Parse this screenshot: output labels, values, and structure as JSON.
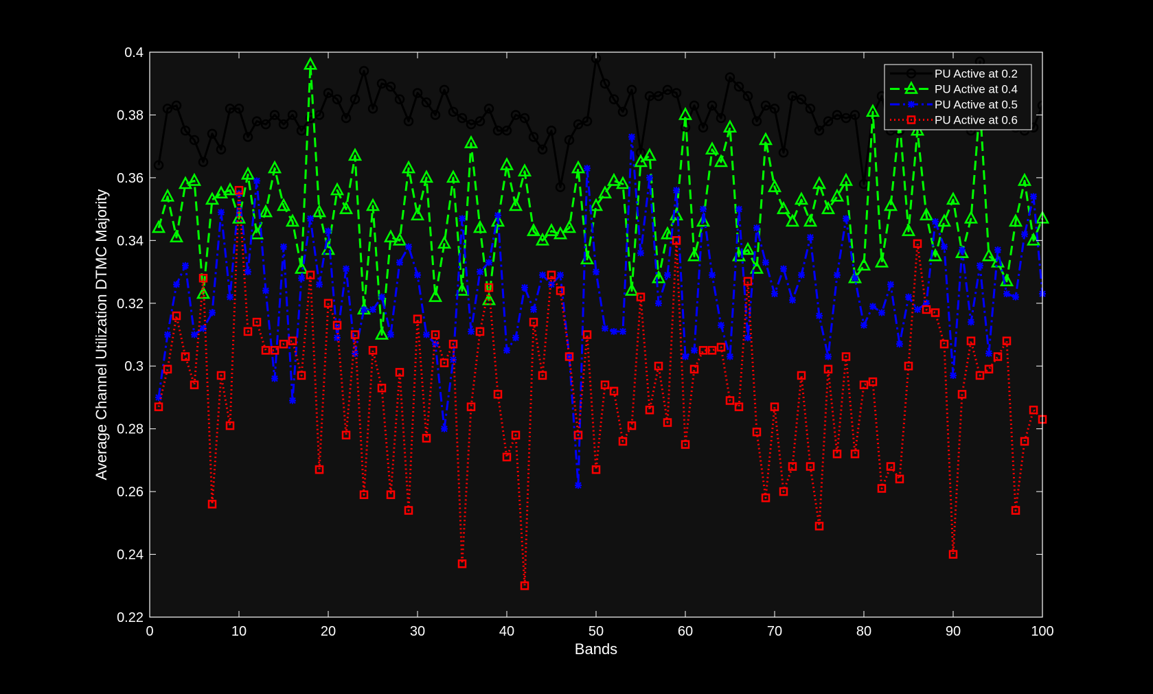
{
  "chart_data": {
    "type": "line",
    "title": "",
    "xlabel": "Bands",
    "ylabel": "Average Channel Utilization DTMC Majority",
    "xlim": [
      0,
      100
    ],
    "ylim": [
      0.22,
      0.4
    ],
    "xticks": [
      0,
      10,
      20,
      30,
      40,
      50,
      60,
      70,
      80,
      90,
      100
    ],
    "yticks": [
      0.22,
      0.24,
      0.26,
      0.28,
      0.3,
      0.32,
      0.34,
      0.36,
      0.38,
      0.4
    ],
    "xtick_labels": [
      "0",
      "10",
      "20",
      "30",
      "40",
      "50",
      "60",
      "70",
      "80",
      "90",
      "100"
    ],
    "ytick_labels": [
      "0.22",
      "0.24",
      "0.26",
      "0.28",
      "0.3",
      "0.32",
      "0.34",
      "0.36",
      "0.38",
      "0.4"
    ],
    "legend_position": "top-right",
    "grid": false,
    "background": "#111111",
    "x": [
      1,
      2,
      3,
      4,
      5,
      6,
      7,
      8,
      9,
      10,
      11,
      12,
      13,
      14,
      15,
      16,
      17,
      18,
      19,
      20,
      21,
      22,
      23,
      24,
      25,
      26,
      27,
      28,
      29,
      30,
      31,
      32,
      33,
      34,
      35,
      36,
      37,
      38,
      39,
      40,
      41,
      42,
      43,
      44,
      45,
      46,
      47,
      48,
      49,
      50,
      51,
      52,
      53,
      54,
      55,
      56,
      57,
      58,
      59,
      60,
      61,
      62,
      63,
      64,
      65,
      66,
      67,
      68,
      69,
      70,
      71,
      72,
      73,
      74,
      75,
      76,
      77,
      78,
      79,
      80,
      81,
      82,
      83,
      84,
      85,
      86,
      87,
      88,
      89,
      90,
      91,
      92,
      93,
      94,
      95,
      96,
      97,
      98,
      99,
      100
    ],
    "series": [
      {
        "name": "PU Active at 0.2",
        "color": "#000000",
        "line_style": "solid",
        "marker": "circle",
        "values": [
          0.364,
          0.382,
          0.383,
          0.375,
          0.372,
          0.365,
          0.374,
          0.369,
          0.382,
          0.382,
          0.373,
          0.378,
          0.377,
          0.38,
          0.377,
          0.38,
          0.375,
          0.379,
          0.38,
          0.387,
          0.385,
          0.379,
          0.385,
          0.394,
          0.382,
          0.39,
          0.389,
          0.385,
          0.378,
          0.387,
          0.384,
          0.38,
          0.388,
          0.381,
          0.379,
          0.377,
          0.378,
          0.382,
          0.375,
          0.375,
          0.38,
          0.379,
          0.373,
          0.369,
          0.375,
          0.357,
          0.372,
          0.377,
          0.378,
          0.398,
          0.39,
          0.385,
          0.381,
          0.388,
          0.368,
          0.386,
          0.386,
          0.388,
          0.387,
          0.376,
          0.383,
          0.376,
          0.383,
          0.379,
          0.392,
          0.389,
          0.386,
          0.378,
          0.383,
          0.382,
          0.368,
          0.386,
          0.385,
          0.382,
          0.375,
          0.378,
          0.38,
          0.379,
          0.38,
          0.358,
          0.38,
          0.386,
          0.375,
          0.375,
          0.383,
          0.376,
          0.385,
          0.381,
          0.38,
          0.38,
          0.384,
          0.375,
          0.397,
          0.38,
          0.378,
          0.38,
          0.376,
          0.375,
          0.376,
          0.383
        ]
      },
      {
        "name": "PU Active at 0.4",
        "color": "#00ff00",
        "line_style": "dashed",
        "marker": "triangle",
        "values": [
          0.344,
          0.354,
          0.341,
          0.358,
          0.359,
          0.323,
          0.353,
          0.355,
          0.356,
          0.347,
          0.361,
          0.342,
          0.349,
          0.363,
          0.351,
          0.346,
          0.331,
          0.396,
          0.349,
          0.337,
          0.356,
          0.35,
          0.367,
          0.318,
          0.351,
          0.31,
          0.341,
          0.34,
          0.363,
          0.348,
          0.36,
          0.322,
          0.339,
          0.36,
          0.324,
          0.371,
          0.344,
          0.321,
          0.346,
          0.364,
          0.351,
          0.362,
          0.343,
          0.34,
          0.343,
          0.342,
          0.344,
          0.363,
          0.334,
          0.351,
          0.355,
          0.359,
          0.358,
          0.324,
          0.365,
          0.367,
          0.328,
          0.342,
          0.348,
          0.38,
          0.335,
          0.346,
          0.369,
          0.365,
          0.376,
          0.335,
          0.337,
          0.331,
          0.372,
          0.357,
          0.35,
          0.346,
          0.353,
          0.346,
          0.358,
          0.35,
          0.354,
          0.359,
          0.328,
          0.332,
          0.381,
          0.333,
          0.351,
          0.378,
          0.343,
          0.375,
          0.348,
          0.335,
          0.346,
          0.353,
          0.336,
          0.347,
          0.383,
          0.335,
          0.333,
          0.327,
          0.346,
          0.359,
          0.34,
          0.347
        ]
      },
      {
        "name": "PU Active at 0.5",
        "color": "#0000ff",
        "line_style": "dash-dot",
        "marker": "star",
        "values": [
          0.29,
          0.31,
          0.326,
          0.332,
          0.31,
          0.312,
          0.317,
          0.349,
          0.322,
          0.355,
          0.33,
          0.359,
          0.324,
          0.296,
          0.338,
          0.289,
          0.328,
          0.347,
          0.326,
          0.343,
          0.309,
          0.331,
          0.304,
          0.318,
          0.318,
          0.322,
          0.31,
          0.333,
          0.338,
          0.329,
          0.31,
          0.307,
          0.28,
          0.302,
          0.347,
          0.311,
          0.33,
          0.333,
          0.348,
          0.305,
          0.309,
          0.325,
          0.318,
          0.329,
          0.326,
          0.329,
          0.303,
          0.262,
          0.363,
          0.33,
          0.312,
          0.311,
          0.311,
          0.373,
          0.336,
          0.36,
          0.32,
          0.329,
          0.356,
          0.303,
          0.305,
          0.35,
          0.329,
          0.313,
          0.303,
          0.35,
          0.309,
          0.344,
          0.333,
          0.323,
          0.331,
          0.321,
          0.329,
          0.341,
          0.316,
          0.303,
          0.329,
          0.347,
          0.328,
          0.313,
          0.319,
          0.317,
          0.326,
          0.307,
          0.322,
          0.318,
          0.32,
          0.346,
          0.338,
          0.297,
          0.337,
          0.314,
          0.332,
          0.304,
          0.337,
          0.323,
          0.322,
          0.342,
          0.354,
          0.323
        ]
      },
      {
        "name": "PU Active at 0.6",
        "color": "#ff0000",
        "line_style": "dotted",
        "marker": "square",
        "values": [
          0.287,
          0.299,
          0.316,
          0.303,
          0.294,
          0.328,
          0.256,
          0.297,
          0.281,
          0.356,
          0.311,
          0.314,
          0.305,
          0.305,
          0.307,
          0.308,
          0.297,
          0.329,
          0.267,
          0.32,
          0.313,
          0.278,
          0.31,
          0.259,
          0.305,
          0.293,
          0.259,
          0.298,
          0.254,
          0.315,
          0.277,
          0.31,
          0.301,
          0.307,
          0.237,
          0.287,
          0.311,
          0.325,
          0.291,
          0.271,
          0.278,
          0.23,
          0.314,
          0.297,
          0.329,
          0.324,
          0.303,
          0.278,
          0.31,
          0.267,
          0.294,
          0.292,
          0.276,
          0.281,
          0.322,
          0.286,
          0.3,
          0.282,
          0.34,
          0.275,
          0.299,
          0.305,
          0.305,
          0.306,
          0.289,
          0.287,
          0.327,
          0.279,
          0.258,
          0.287,
          0.26,
          0.268,
          0.297,
          0.268,
          0.249,
          0.299,
          0.272,
          0.303,
          0.272,
          0.294,
          0.295,
          0.261,
          0.268,
          0.264,
          0.3,
          0.339,
          0.318,
          0.317,
          0.307,
          0.24,
          0.291,
          0.308,
          0.297,
          0.299,
          0.303,
          0.308,
          0.254,
          0.276,
          0.286,
          0.283
        ]
      }
    ]
  }
}
